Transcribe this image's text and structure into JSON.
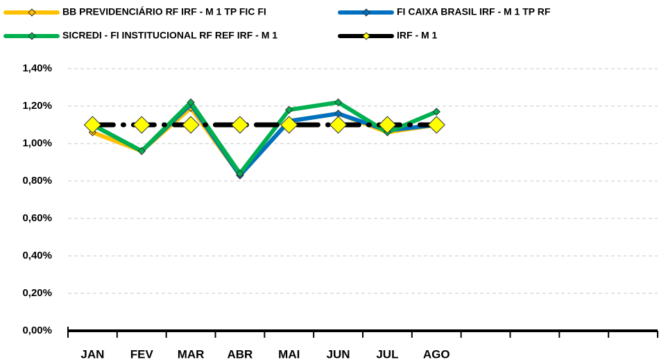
{
  "chart_data": {
    "type": "line",
    "categories": [
      "JAN",
      "FEV",
      "MAR",
      "ABR",
      "MAI",
      "JUN",
      "JUL",
      "AGO",
      null,
      null,
      null,
      null
    ],
    "series": [
      {
        "name": "BB PREVIDENCIÁRIO RF IRF - M 1 TP FIC FI",
        "color": "#FFC000",
        "marker_color": "#FFC000",
        "linestyle": "solid",
        "values": [
          1.06,
          0.96,
          1.19,
          0.83,
          1.12,
          1.16,
          1.06,
          1.1,
          null,
          null,
          null,
          null
        ]
      },
      {
        "name": "FI CAIXA BRASIL IRF - M 1 TP RF",
        "color": "#0070C0",
        "marker_color": "#0070C0",
        "linestyle": "solid",
        "values": [
          1.1,
          0.96,
          1.21,
          0.83,
          1.12,
          1.16,
          1.07,
          1.1,
          null,
          null,
          null,
          null
        ]
      },
      {
        "name": "SICREDI - FI INSTITUCIONAL RF REF IRF - M 1",
        "color": "#00B050",
        "marker_color": "#00B050",
        "linestyle": "solid",
        "values": [
          1.1,
          0.96,
          1.22,
          0.84,
          1.18,
          1.22,
          1.06,
          1.17,
          null,
          null,
          null,
          null
        ]
      },
      {
        "name": "IRF - M 1",
        "color": "#000000",
        "marker_color": "#FFFF00",
        "linestyle": "dashed",
        "values": [
          1.1,
          1.1,
          1.1,
          1.1,
          1.1,
          1.1,
          1.1,
          1.1,
          null,
          null,
          null,
          null
        ]
      }
    ],
    "ylim": [
      0,
      1.4
    ],
    "yticks": [
      {
        "value": 0,
        "label": "0,00%"
      },
      {
        "value": 0.2,
        "label": "0,20%"
      },
      {
        "value": 0.4,
        "label": "0,40%"
      },
      {
        "value": 0.6,
        "label": "0,60%"
      },
      {
        "value": 0.8,
        "label": "0,80%"
      },
      {
        "value": 1.0,
        "label": "1,00%"
      },
      {
        "value": 1.2,
        "label": "1,20%"
      },
      {
        "value": 1.4,
        "label": "1,40%"
      }
    ],
    "grid": true,
    "legend": "top"
  }
}
